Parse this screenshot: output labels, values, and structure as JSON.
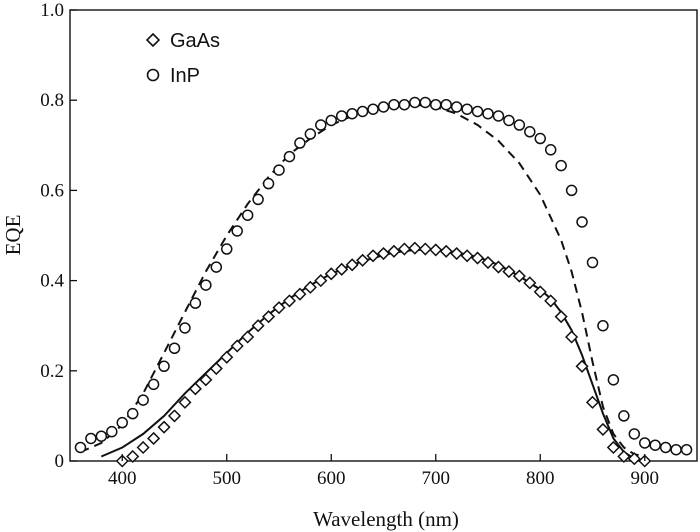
{
  "chart_data": {
    "type": "scatter",
    "title": "",
    "xlabel": "Wavelength (nm)",
    "ylabel": "EQE",
    "xlim": [
      350,
      950
    ],
    "ylim": [
      0,
      1.0
    ],
    "x_ticks": [
      400,
      500,
      600,
      700,
      800,
      900
    ],
    "x_tick_labels": [
      "400",
      "500",
      "600",
      "700",
      "800",
      "900"
    ],
    "y_ticks": [
      0,
      0.2,
      0.4,
      0.6,
      0.8,
      1.0
    ],
    "y_tick_labels": [
      "0",
      "0.2",
      "0.4",
      "0.6",
      "0.8",
      "1.0"
    ],
    "grid": false,
    "legend_position": "top-left",
    "series": [
      {
        "name": "GaAs",
        "marker": "diamond",
        "x": [
          400,
          410,
          420,
          430,
          440,
          450,
          460,
          470,
          480,
          490,
          500,
          510,
          520,
          530,
          540,
          550,
          560,
          570,
          580,
          590,
          600,
          610,
          620,
          630,
          640,
          650,
          660,
          670,
          680,
          690,
          700,
          710,
          720,
          730,
          740,
          750,
          760,
          770,
          780,
          790,
          800,
          810,
          820,
          830,
          840,
          850,
          860,
          870,
          880,
          890,
          900
        ],
        "y": [
          0.0,
          0.01,
          0.03,
          0.05,
          0.075,
          0.1,
          0.13,
          0.16,
          0.18,
          0.205,
          0.23,
          0.255,
          0.275,
          0.3,
          0.32,
          0.34,
          0.355,
          0.37,
          0.385,
          0.4,
          0.415,
          0.425,
          0.435,
          0.445,
          0.455,
          0.46,
          0.465,
          0.47,
          0.472,
          0.47,
          0.468,
          0.465,
          0.46,
          0.455,
          0.45,
          0.44,
          0.43,
          0.42,
          0.41,
          0.395,
          0.375,
          0.355,
          0.32,
          0.275,
          0.21,
          0.13,
          0.07,
          0.03,
          0.01,
          0.005,
          0.0
        ]
      },
      {
        "name": "InP",
        "marker": "circle",
        "x": [
          360,
          370,
          380,
          390,
          400,
          410,
          420,
          430,
          440,
          450,
          460,
          470,
          480,
          490,
          500,
          510,
          520,
          530,
          540,
          550,
          560,
          570,
          580,
          590,
          600,
          610,
          620,
          630,
          640,
          650,
          660,
          670,
          680,
          690,
          700,
          710,
          720,
          730,
          740,
          750,
          760,
          770,
          780,
          790,
          800,
          810,
          820,
          830,
          840,
          850,
          860,
          870,
          880,
          890,
          900,
          910,
          920,
          930,
          940
        ],
        "y": [
          0.03,
          0.05,
          0.055,
          0.065,
          0.085,
          0.105,
          0.135,
          0.17,
          0.21,
          0.25,
          0.295,
          0.35,
          0.39,
          0.43,
          0.47,
          0.51,
          0.545,
          0.58,
          0.615,
          0.645,
          0.675,
          0.705,
          0.725,
          0.745,
          0.755,
          0.765,
          0.77,
          0.775,
          0.78,
          0.785,
          0.79,
          0.79,
          0.795,
          0.795,
          0.79,
          0.79,
          0.785,
          0.78,
          0.775,
          0.77,
          0.765,
          0.755,
          0.745,
          0.73,
          0.715,
          0.69,
          0.655,
          0.6,
          0.53,
          0.44,
          0.3,
          0.18,
          0.1,
          0.06,
          0.04,
          0.035,
          0.03,
          0.025,
          0.025
        ]
      },
      {
        "name": "",
        "line_style": "solid",
        "x": [
          380,
          400,
          420,
          440,
          460,
          480,
          500,
          520,
          540,
          560,
          580,
          600,
          620,
          640,
          660,
          680,
          700,
          720,
          740,
          760,
          780,
          800,
          810,
          820,
          830,
          840,
          850,
          860,
          870,
          880,
          890,
          900
        ],
        "y": [
          0.01,
          0.03,
          0.06,
          0.1,
          0.15,
          0.195,
          0.24,
          0.285,
          0.325,
          0.36,
          0.39,
          0.415,
          0.435,
          0.45,
          0.462,
          0.468,
          0.468,
          0.463,
          0.452,
          0.435,
          0.41,
          0.38,
          0.36,
          0.33,
          0.29,
          0.235,
          0.17,
          0.105,
          0.05,
          0.02,
          0.005,
          0.0
        ]
      },
      {
        "name": "",
        "line_style": "dashed",
        "x": [
          360,
          380,
          400,
          420,
          440,
          460,
          480,
          500,
          520,
          540,
          560,
          580,
          600,
          620,
          640,
          660,
          680,
          700,
          720,
          740,
          760,
          780,
          800,
          820,
          830,
          840,
          850,
          860,
          870,
          880,
          890,
          900
        ],
        "y": [
          0.02,
          0.04,
          0.08,
          0.15,
          0.24,
          0.33,
          0.42,
          0.5,
          0.57,
          0.63,
          0.68,
          0.715,
          0.745,
          0.765,
          0.78,
          0.788,
          0.79,
          0.785,
          0.77,
          0.745,
          0.71,
          0.66,
          0.59,
          0.49,
          0.42,
          0.33,
          0.22,
          0.12,
          0.06,
          0.03,
          0.015,
          0.01
        ]
      }
    ]
  }
}
